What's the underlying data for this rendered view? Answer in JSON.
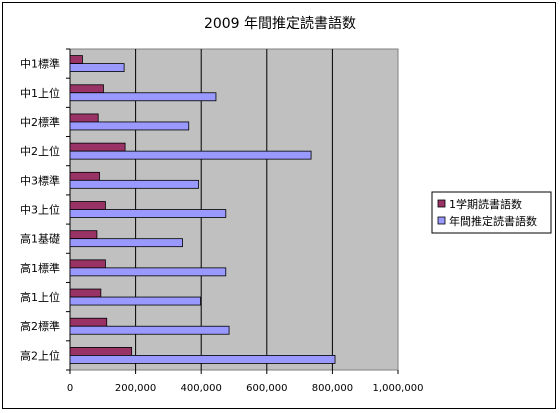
{
  "chart_data": {
    "type": "bar",
    "orientation": "horizontal",
    "title": "2009 年間推定読書語数",
    "categories": [
      "中1標準",
      "中1上位",
      "中2標準",
      "中2上位",
      "中3標準",
      "中3上位",
      "高1基礎",
      "高1標準",
      "高1上位",
      "高2標準",
      "高2上位"
    ],
    "series": [
      {
        "name": "1学期読書語数",
        "color": "#993366",
        "values": [
          38000,
          102000,
          86000,
          168000,
          90000,
          108000,
          82000,
          108000,
          94000,
          112000,
          188000
        ]
      },
      {
        "name": "年間推定読書語数",
        "color": "#9999ff",
        "values": [
          165000,
          445000,
          362000,
          735000,
          392000,
          475000,
          343000,
          475000,
          398000,
          485000,
          808000
        ]
      }
    ],
    "xlim": [
      0,
      1000000
    ],
    "ticks": [
      "0",
      "200,000",
      "400,000",
      "600,000",
      "800,000",
      "1,000,000"
    ],
    "tick_values": [
      0,
      200000,
      400000,
      600000,
      800000,
      1000000
    ],
    "grid": true,
    "plot_background": "#c0c0c0",
    "legend_position": "right"
  }
}
